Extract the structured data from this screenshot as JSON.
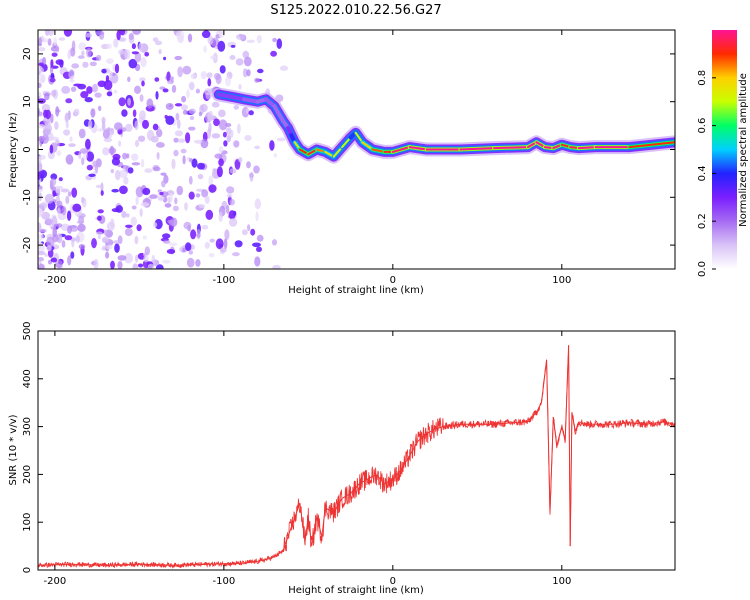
{
  "title": "S125.2022.010.22.56.G27",
  "chart_data": [
    {
      "type": "heatmap",
      "xlabel": "Height of straight line (km)",
      "ylabel": "Frequency (Hz)",
      "xlim": [
        -210,
        167
      ],
      "ylim": [
        -25,
        25
      ],
      "x_ticks": [
        -200,
        -100,
        0,
        100
      ],
      "y_ticks": [
        -20,
        -10,
        0,
        10,
        20
      ],
      "colorbar": {
        "label": "Normalized spectral amplitude",
        "range": [
          0,
          1
        ],
        "ticks": [
          "0.0",
          "0.2",
          "0.4",
          "0.6",
          "0.8"
        ],
        "colormap": [
          "#ffffff",
          "#d9c3f7",
          "#a56bf2",
          "#7b1fff",
          "#2222ff",
          "#00d0ff",
          "#00ff66",
          "#c8ff00",
          "#ffd000",
          "#ff2a00",
          "#ff1493"
        ]
      },
      "ridge": {
        "x": [
          -103,
          -95,
          -88,
          -80,
          -75,
          -70,
          -65,
          -62,
          -60,
          -58,
          -55,
          -50,
          -45,
          -40,
          -35,
          -30,
          -25,
          -22,
          -18,
          -12,
          -5,
          0,
          10,
          20,
          40,
          60,
          80,
          85,
          90,
          95,
          100,
          105,
          110,
          120,
          140,
          167
        ],
        "freq": [
          11.5,
          11,
          10.5,
          10,
          10.5,
          9,
          6,
          4.5,
          3,
          1.5,
          0,
          -1,
          0,
          -0.5,
          -1.5,
          0.5,
          2.5,
          3.5,
          1.5,
          0,
          -0.5,
          -0.5,
          0.5,
          0,
          0,
          0.3,
          0.5,
          1.5,
          0.5,
          0.3,
          1,
          0.5,
          0.3,
          0.5,
          0.5,
          1.5
        ],
        "amplitude": [
          0.35,
          0.35,
          0.35,
          0.25,
          0.3,
          0.3,
          0.25,
          0.3,
          0.45,
          0.55,
          0.75,
          0.85,
          0.8,
          0.7,
          0.6,
          0.65,
          0.55,
          0.55,
          0.65,
          0.75,
          0.8,
          0.85,
          0.9,
          0.9,
          0.9,
          0.9,
          0.9,
          0.9,
          0.9,
          0.9,
          0.85,
          0.8,
          0.9,
          0.9,
          0.9,
          0.7
        ]
      },
      "noise_region": {
        "x_from": -210,
        "x_to": -70,
        "amplitude": 0.15
      }
    },
    {
      "type": "line",
      "xlabel": "Height of straight line (km)",
      "ylabel": "SNR (10 * v/v)",
      "xlim": [
        -210,
        167
      ],
      "ylim": [
        0,
        500
      ],
      "x_ticks": [
        -200,
        -100,
        0,
        100
      ],
      "y_ticks": [
        0,
        100,
        200,
        300,
        400,
        500
      ],
      "color": "#ee3333",
      "series": [
        {
          "x": [
            -210,
            -190,
            -170,
            -150,
            -130,
            -110,
            -90,
            -80,
            -75,
            -70,
            -65,
            -60,
            -55,
            -52,
            -50,
            -48,
            -45,
            -42,
            -40,
            -35,
            -30,
            -25,
            -20,
            -15,
            -10,
            -5,
            0,
            5,
            10,
            15,
            20,
            25,
            30,
            40,
            50,
            60,
            70,
            80,
            85,
            88,
            91,
            93,
            95,
            97,
            100,
            102,
            104,
            105,
            106,
            108,
            110,
            115,
            120,
            130,
            140,
            150,
            160,
            167
          ],
          "values": [
            10,
            12,
            10,
            12,
            10,
            12,
            14,
            18,
            22,
            28,
            40,
            90,
            140,
            60,
            110,
            50,
            110,
            70,
            130,
            120,
            150,
            160,
            180,
            190,
            200,
            180,
            190,
            210,
            240,
            270,
            285,
            295,
            300,
            305,
            305,
            305,
            308,
            310,
            330,
            350,
            440,
            120,
            320,
            260,
            300,
            270,
            470,
            50,
            330,
            290,
            310,
            305,
            305,
            305,
            308,
            305,
            310,
            305
          ]
        }
      ]
    }
  ]
}
